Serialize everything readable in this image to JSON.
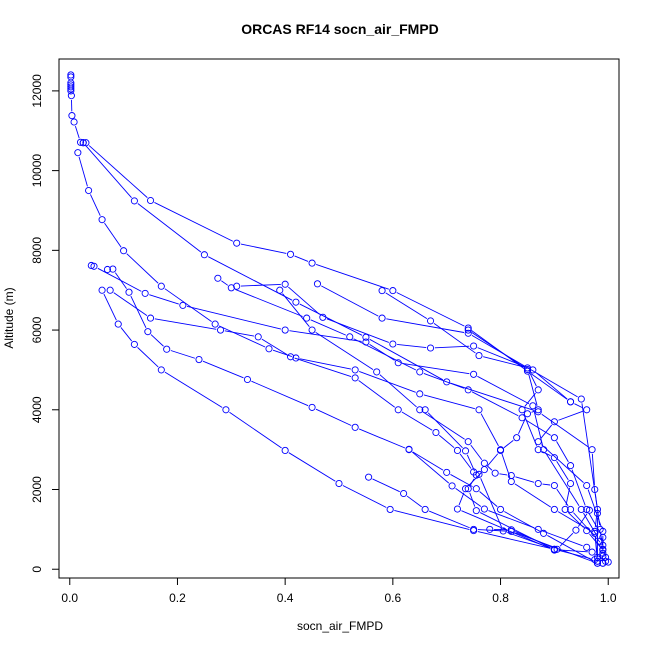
{
  "chart_data": {
    "type": "line",
    "title": "ORCAS RF14 socn_air_FMPD",
    "xlabel": "socn_air_FMPD",
    "ylabel": "Altitude (m)",
    "xlim": [
      -0.02,
      1.02
    ],
    "ylim": [
      -220,
      12800
    ],
    "x_ticks": [
      0.0,
      0.2,
      0.4,
      0.6,
      0.8,
      1.0
    ],
    "x_tick_labels": [
      "0.0",
      "0.2",
      "0.4",
      "0.6",
      "0.8",
      "1.0"
    ],
    "y_ticks": [
      0,
      2000,
      4000,
      6000,
      8000,
      10000,
      12000
    ],
    "y_tick_labels": [
      "0",
      "2000",
      "4000",
      "6000",
      "8000",
      "10000",
      "12000"
    ],
    "grid": false,
    "legend": "none",
    "marker": "open-circle",
    "color": "#0000ff",
    "series": [
      {
        "values": [
          [
            0.002,
            12400
          ],
          [
            0.002,
            12350
          ],
          [
            0.002,
            12200
          ],
          [
            0.002,
            12150
          ],
          [
            0.002,
            12100
          ],
          [
            0.002,
            12050
          ],
          [
            0.002,
            12000
          ],
          [
            0.003,
            11880
          ],
          [
            0.004,
            11380
          ],
          [
            0.008,
            11220
          ],
          [
            0.02,
            10710
          ],
          [
            0.025,
            10700
          ],
          [
            0.12,
            9240
          ],
          [
            0.25,
            7890
          ],
          [
            0.42,
            6700
          ],
          [
            0.55,
            5820
          ],
          [
            0.7,
            4700
          ],
          [
            0.87,
            3950
          ],
          [
            0.97,
            3000
          ],
          [
            0.975,
            2000
          ],
          [
            0.985,
            1000
          ],
          [
            0.99,
            500
          ],
          [
            0.995,
            300
          ]
        ]
      },
      {
        "values": [
          [
            0.025,
            10700
          ],
          [
            0.03,
            10700
          ],
          [
            0.15,
            9250
          ],
          [
            0.31,
            8180
          ],
          [
            0.41,
            7900
          ],
          [
            0.45,
            7680
          ],
          [
            0.6,
            6990
          ],
          [
            0.74,
            6050
          ],
          [
            0.85,
            4970
          ],
          [
            0.93,
            4200
          ],
          [
            0.96,
            4000
          ],
          [
            0.9,
            3700
          ],
          [
            0.87,
            3200
          ],
          [
            0.96,
            2100
          ],
          [
            0.99,
            950
          ],
          [
            0.99,
            330
          ]
        ]
      },
      {
        "values": [
          [
            0.015,
            10450
          ],
          [
            0.035,
            9500
          ],
          [
            0.06,
            8770
          ],
          [
            0.1,
            7990
          ],
          [
            0.17,
            7100
          ],
          [
            0.27,
            6150
          ],
          [
            0.37,
            5530
          ],
          [
            0.42,
            5300
          ],
          [
            0.53,
            5000
          ],
          [
            0.65,
            4400
          ],
          [
            0.76,
            4000
          ],
          [
            0.8,
            3000
          ],
          [
            0.82,
            2200
          ],
          [
            0.9,
            1500
          ],
          [
            0.975,
            900
          ],
          [
            0.98,
            200
          ],
          [
            0.99,
            150
          ]
        ]
      },
      {
        "values": [
          [
            0.04,
            7620
          ],
          [
            0.045,
            7600
          ],
          [
            0.14,
            6920
          ],
          [
            0.21,
            6620
          ],
          [
            0.4,
            6000
          ],
          [
            0.55,
            5700
          ],
          [
            0.61,
            5180
          ],
          [
            0.75,
            4890
          ],
          [
            0.86,
            4100
          ],
          [
            0.88,
            3000
          ],
          [
            0.95,
            1500
          ],
          [
            0.985,
            700
          ],
          [
            0.99,
            400
          ]
        ]
      },
      {
        "values": [
          [
            0.07,
            7520
          ],
          [
            0.08,
            7530
          ],
          [
            0.11,
            6950
          ],
          [
            0.145,
            5960
          ],
          [
            0.18,
            5520
          ],
          [
            0.24,
            5260
          ],
          [
            0.33,
            4760
          ],
          [
            0.45,
            4060
          ],
          [
            0.53,
            3560
          ],
          [
            0.63,
            3000
          ],
          [
            0.7,
            2430
          ],
          [
            0.755,
            2020
          ],
          [
            0.8,
            1500
          ],
          [
            0.88,
            900
          ],
          [
            0.98,
            150
          ]
        ]
      },
      {
        "values": [
          [
            0.06,
            7000
          ],
          [
            0.09,
            6150
          ],
          [
            0.12,
            5640
          ],
          [
            0.17,
            5000
          ],
          [
            0.29,
            4000
          ],
          [
            0.4,
            2980
          ],
          [
            0.5,
            2150
          ],
          [
            0.595,
            1500
          ],
          [
            0.75,
            970
          ],
          [
            0.9,
            500
          ],
          [
            0.975,
            240
          ],
          [
            0.99,
            150
          ]
        ]
      },
      {
        "values": [
          [
            0.075,
            7000
          ],
          [
            0.15,
            6300
          ],
          [
            0.28,
            6000
          ],
          [
            0.35,
            5830
          ],
          [
            0.41,
            5330
          ],
          [
            0.53,
            4800
          ],
          [
            0.61,
            4000
          ],
          [
            0.68,
            3430
          ],
          [
            0.72,
            2980
          ],
          [
            0.75,
            2440
          ],
          [
            0.76,
            2380
          ],
          [
            0.805,
            960
          ],
          [
            0.9,
            500
          ]
        ]
      },
      {
        "values": [
          [
            0.275,
            7300
          ],
          [
            0.3,
            7060
          ],
          [
            0.44,
            6300
          ],
          [
            0.52,
            5830
          ],
          [
            0.65,
            4950
          ],
          [
            0.74,
            4500
          ],
          [
            0.84,
            3800
          ],
          [
            0.9,
            3300
          ],
          [
            0.93,
            2600
          ],
          [
            0.96,
            1500
          ],
          [
            0.99,
            800
          ]
        ]
      },
      {
        "values": [
          [
            0.31,
            7100
          ],
          [
            0.4,
            7150
          ],
          [
            0.47,
            6320
          ],
          [
            0.6,
            5650
          ],
          [
            0.67,
            5550
          ],
          [
            0.75,
            5600
          ],
          [
            0.86,
            5000
          ],
          [
            0.93,
            4200
          ]
        ]
      },
      {
        "values": [
          [
            0.39,
            7000
          ],
          [
            0.45,
            6000
          ],
          [
            0.57,
            4950
          ],
          [
            0.65,
            4000
          ],
          [
            0.74,
            3200
          ],
          [
            0.77,
            2660
          ],
          [
            0.79,
            2410
          ],
          [
            0.82,
            2350
          ],
          [
            0.87,
            2150
          ],
          [
            0.9,
            2100
          ],
          [
            0.93,
            1500
          ],
          [
            0.99,
            600
          ]
        ]
      },
      {
        "values": [
          [
            0.58,
            6990
          ],
          [
            0.67,
            6230
          ],
          [
            0.76,
            5360
          ],
          [
            0.85,
            5050
          ],
          [
            0.87,
            4500
          ],
          [
            0.84,
            4000
          ],
          [
            0.87,
            3000
          ],
          [
            0.9,
            2800
          ],
          [
            0.93,
            2150
          ],
          [
            0.92,
            1500
          ],
          [
            0.96,
            970
          ],
          [
            0.99,
            480
          ]
        ]
      },
      {
        "values": [
          [
            0.46,
            7160
          ],
          [
            0.58,
            6300
          ],
          [
            0.74,
            5920
          ],
          [
            0.95,
            4270
          ],
          [
            0.98,
            1500
          ],
          [
            0.975,
            950
          ],
          [
            0.98,
            300
          ]
        ]
      },
      {
        "values": [
          [
            0.74,
            6000
          ],
          [
            0.85,
            5010
          ],
          [
            0.87,
            4000
          ],
          [
            0.85,
            3900
          ],
          [
            0.83,
            3300
          ],
          [
            0.8,
            2980
          ],
          [
            0.77,
            2500
          ],
          [
            0.735,
            2020
          ],
          [
            0.72,
            1510
          ],
          [
            0.9,
            480
          ]
        ]
      },
      {
        "values": [
          [
            0.66,
            4000
          ],
          [
            0.735,
            2970
          ],
          [
            0.755,
            2360
          ],
          [
            0.74,
            2020
          ],
          [
            0.755,
            1470
          ],
          [
            0.9,
            490
          ],
          [
            0.97,
            430
          ],
          [
            1.0,
            180
          ],
          [
            0.995,
            200
          ]
        ]
      },
      {
        "values": [
          [
            0.63,
            3010
          ],
          [
            0.71,
            2090
          ],
          [
            0.77,
            1510
          ],
          [
            0.87,
            1000
          ],
          [
            0.96,
            550
          ]
        ]
      },
      {
        "values": [
          [
            0.555,
            2310
          ],
          [
            0.62,
            1900
          ],
          [
            0.66,
            1500
          ],
          [
            0.75,
            1000
          ],
          [
            0.82,
            950
          ],
          [
            0.98,
            150
          ]
        ]
      },
      {
        "values": [
          [
            0.78,
            1000
          ],
          [
            0.82,
            990
          ],
          [
            0.905,
            500
          ],
          [
            0.94,
            980
          ],
          [
            0.965,
            1480
          ],
          [
            0.98,
            1400
          ],
          [
            0.98,
            200
          ]
        ]
      }
    ]
  }
}
